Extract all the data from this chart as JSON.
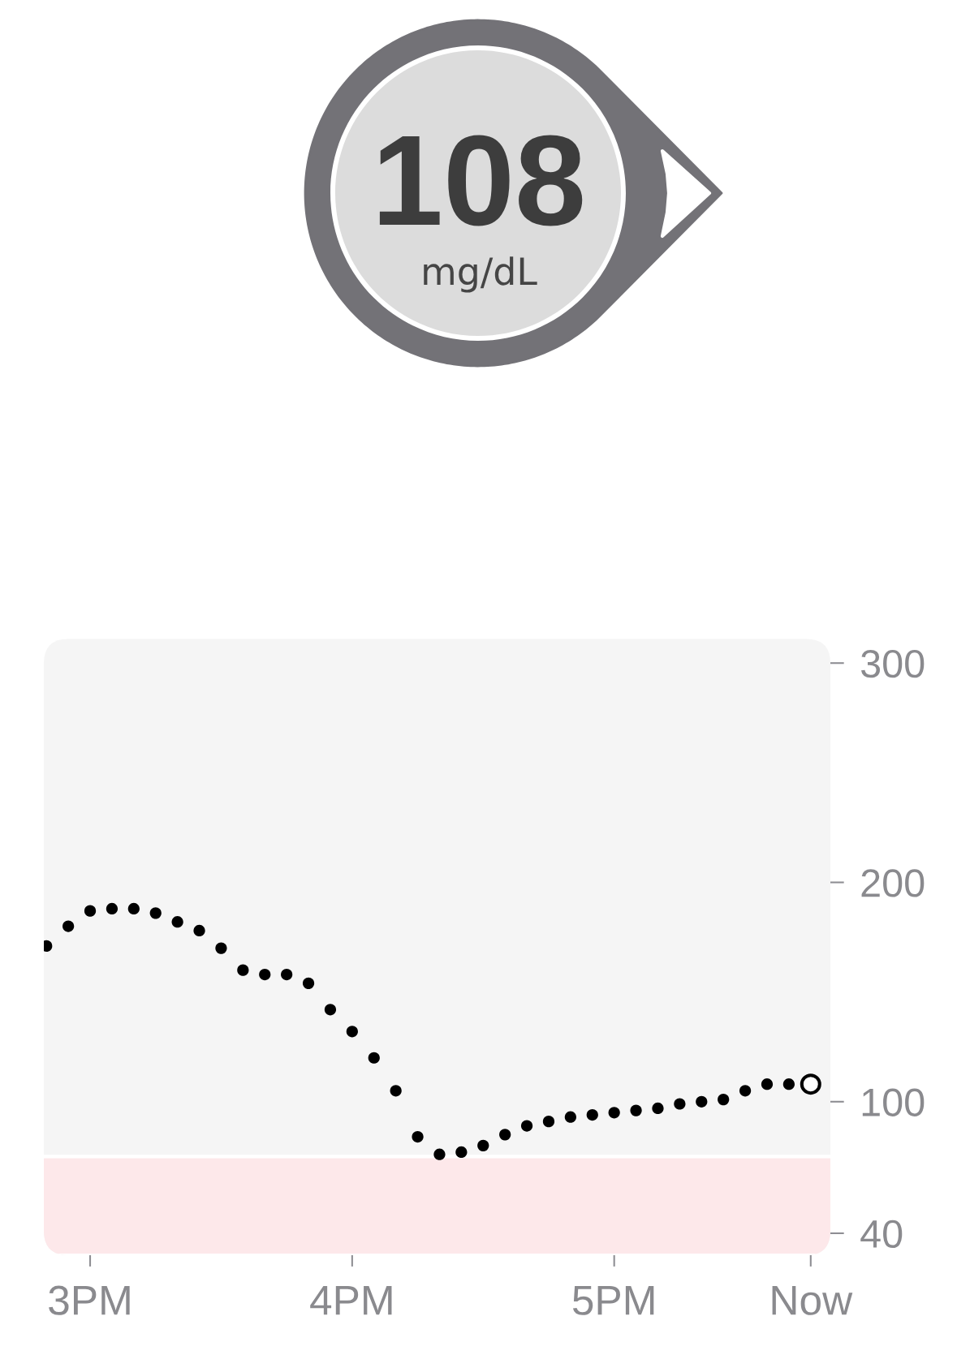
{
  "chart_data": [
    {
      "type": "other",
      "title": "108",
      "subtitle": "mg/dL"
    },
    {
      "type": "scatter",
      "categories": [
        null,
        null,
        "3PM",
        null,
        null,
        null,
        null,
        null,
        null,
        null,
        null,
        null,
        null,
        null,
        "4PM",
        null,
        null,
        null,
        null,
        null,
        null,
        null,
        null,
        null,
        null,
        null,
        "5PM",
        null,
        null,
        null,
        null,
        null,
        null,
        null,
        null,
        "Now"
      ],
      "series": [
        {
          "color": "#000000",
          "values": [
            171,
            180,
            187,
            188,
            188,
            186,
            182,
            178,
            170,
            160,
            158,
            158,
            154,
            142,
            132,
            120,
            105,
            84,
            76,
            77,
            80,
            85,
            89,
            91,
            93,
            94,
            95,
            96,
            97,
            99,
            100,
            101,
            105,
            108,
            108,
            null
          ]
        },
        {
          "color": "#000000",
          "values": [
            null,
            null,
            null,
            null,
            null,
            null,
            null,
            null,
            null,
            null,
            null,
            null,
            null,
            null,
            null,
            null,
            null,
            null,
            null,
            null,
            null,
            null,
            null,
            null,
            null,
            null,
            null,
            null,
            null,
            null,
            null,
            null,
            null,
            null,
            null,
            108
          ]
        }
      ],
      "marker": "circle",
      "ylim": [
        30,
        311
      ],
      "yticks": [
        40,
        100,
        200,
        300
      ],
      "bands": [
        {
          "axis": "y",
          "from": 30,
          "to": 75,
          "color": "#fde8ea"
        }
      ],
      "grid": false
    }
  ]
}
